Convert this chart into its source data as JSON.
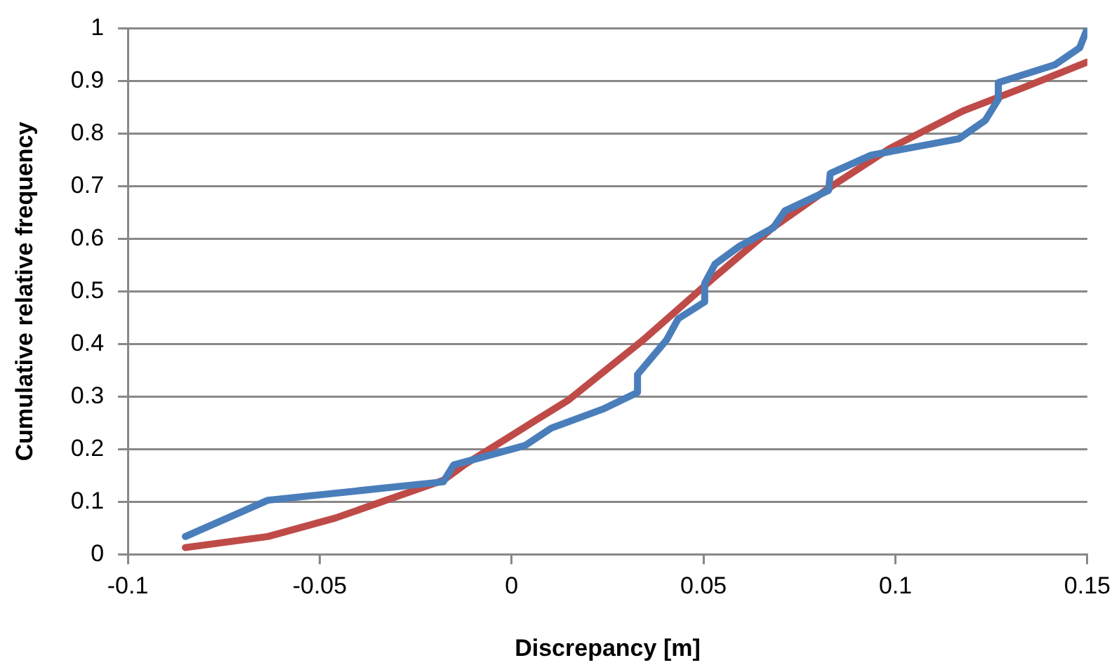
{
  "chart_data": {
    "type": "line",
    "xlabel": "Discrepancy [m]",
    "ylabel": "Cumulative relative frequency",
    "xlim": [
      -0.1,
      0.15
    ],
    "xticks": [
      -0.1,
      -0.05,
      0,
      0.05,
      0.1,
      0.15
    ],
    "ylim": [
      0,
      1
    ],
    "yticks": [
      0,
      0.1,
      0.2,
      0.3,
      0.4,
      0.5,
      0.6,
      0.7,
      0.8,
      0.9,
      1
    ],
    "grid": "y",
    "legend": false,
    "marker": "none",
    "line_style": "solid",
    "series": [
      {
        "color": "#4a7ebb",
        "x": [
          -0.085,
          -0.0635,
          -0.0178,
          -0.0151,
          0.0035,
          0.0103,
          0.0237,
          0.0328,
          0.0328,
          0.0404,
          0.0434,
          0.0503,
          0.0503,
          0.053,
          0.0594,
          0.0682,
          0.0712,
          0.0826,
          0.083,
          0.0937,
          0.1165,
          0.1234,
          0.1268,
          0.1268,
          0.1416,
          0.148,
          0.15
        ],
        "values": [
          0.034,
          0.103,
          0.138,
          0.17,
          0.207,
          0.24,
          0.276,
          0.308,
          0.342,
          0.408,
          0.448,
          0.48,
          0.515,
          0.552,
          0.586,
          0.621,
          0.653,
          0.692,
          0.724,
          0.759,
          0.79,
          0.825,
          0.865,
          0.897,
          0.931,
          0.963,
          1.0
        ]
      },
      {
        "color": "#be4b48",
        "x": [
          -0.085,
          -0.0635,
          -0.046,
          -0.0178,
          -0.012,
          -0.0003,
          0.0149,
          0.034,
          0.053,
          0.068,
          0.0834,
          0.0986,
          0.1176,
          0.1329,
          0.15
        ],
        "values": [
          0.013,
          0.034,
          0.069,
          0.141,
          0.172,
          0.225,
          0.294,
          0.406,
          0.528,
          0.621,
          0.7,
          0.772,
          0.843,
          0.886,
          0.936
        ]
      }
    ]
  }
}
